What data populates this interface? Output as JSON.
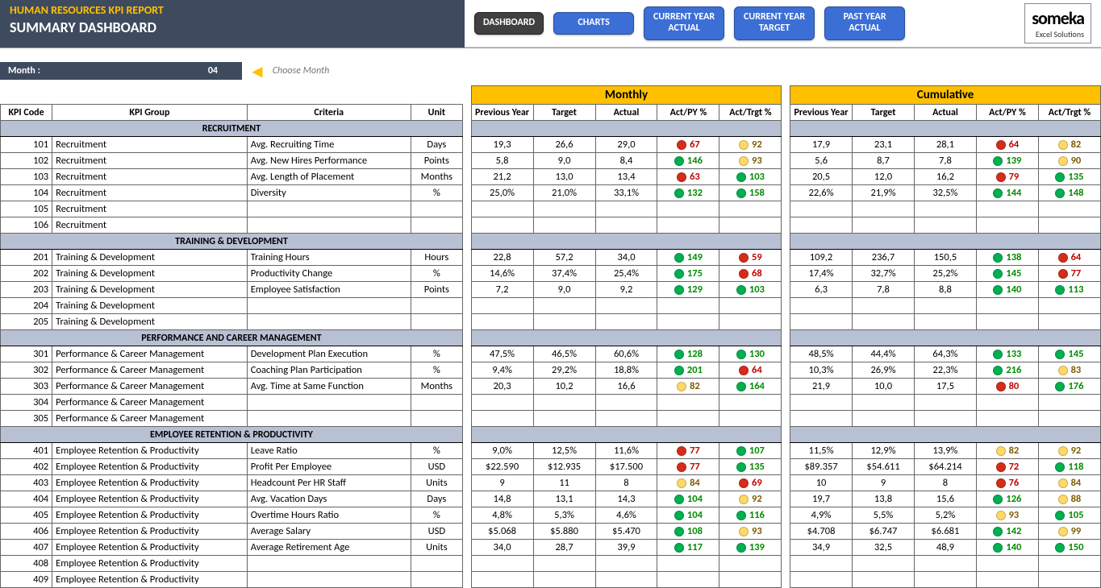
{
  "header": {
    "title1": "HUMAN RESOURCES KPI REPORT",
    "title2": "SUMMARY DASHBOARD",
    "nav": [
      "DASHBOARD",
      "CHARTS",
      "CURRENT YEAR\nACTUAL",
      "CURRENT YEAR\nTARGET",
      "PAST YEAR\nACTUAL"
    ],
    "logo1": "someka",
    "logo2": "Excel Solutions"
  },
  "month": {
    "label": "Month :",
    "value": "04",
    "choose": "Choose Month"
  },
  "section_labels": {
    "monthly": "Monthly",
    "cumulative": "Cumulative"
  },
  "col_labels": {
    "code": "KPI Code",
    "group": "KPI Group",
    "criteria": "Criteria",
    "unit": "Unit",
    "py": "Previous Year",
    "tgt": "Target",
    "act": "Actual",
    "actpy": "Act/PY %",
    "acttgt": "Act/Trgt %"
  },
  "groups": [
    {
      "name": "RECRUITMENT",
      "rows": [
        {
          "code": "101",
          "group": "Recruitment",
          "criteria": "Avg. Recruiting Time",
          "unit": "Days",
          "m": {
            "py": "19,3",
            "tgt": "26,6",
            "act": "29,0",
            "ap": {
              "v": "67",
              "c": "r"
            },
            "at": {
              "v": "92",
              "c": "y"
            }
          },
          "c": {
            "py": "17,9",
            "tgt": "23,1",
            "act": "28,1",
            "ap": {
              "v": "64",
              "c": "r"
            },
            "at": {
              "v": "82",
              "c": "y"
            }
          }
        },
        {
          "code": "102",
          "group": "Recruitment",
          "criteria": "Avg. New Hires Performance",
          "unit": "Points",
          "m": {
            "py": "5,8",
            "tgt": "9,0",
            "act": "8,4",
            "ap": {
              "v": "146",
              "c": "g"
            },
            "at": {
              "v": "93",
              "c": "y"
            }
          },
          "c": {
            "py": "5,6",
            "tgt": "8,7",
            "act": "7,8",
            "ap": {
              "v": "139",
              "c": "g"
            },
            "at": {
              "v": "90",
              "c": "y"
            }
          }
        },
        {
          "code": "103",
          "group": "Recruitment",
          "criteria": "Avg. Length of Placement",
          "unit": "Months",
          "m": {
            "py": "21,2",
            "tgt": "13,0",
            "act": "13,4",
            "ap": {
              "v": "63",
              "c": "r"
            },
            "at": {
              "v": "103",
              "c": "g"
            }
          },
          "c": {
            "py": "20,5",
            "tgt": "12,0",
            "act": "16,2",
            "ap": {
              "v": "79",
              "c": "r"
            },
            "at": {
              "v": "135",
              "c": "g"
            }
          }
        },
        {
          "code": "104",
          "group": "Recruitment",
          "criteria": "Diversity",
          "unit": "%",
          "m": {
            "py": "25,0%",
            "tgt": "21,0%",
            "act": "33,1%",
            "ap": {
              "v": "132",
              "c": "g"
            },
            "at": {
              "v": "158",
              "c": "g"
            }
          },
          "c": {
            "py": "22,6%",
            "tgt": "21,9%",
            "act": "32,5%",
            "ap": {
              "v": "144",
              "c": "g"
            },
            "at": {
              "v": "148",
              "c": "g"
            }
          }
        },
        {
          "code": "105",
          "group": "Recruitment"
        },
        {
          "code": "106",
          "group": "Recruitment"
        }
      ]
    },
    {
      "name": "TRAINING & DEVELOPMENT",
      "rows": [
        {
          "code": "201",
          "group": "Training & Development",
          "criteria": "Training Hours",
          "unit": "Hours",
          "m": {
            "py": "22,8",
            "tgt": "57,2",
            "act": "34,0",
            "ap": {
              "v": "149",
              "c": "g"
            },
            "at": {
              "v": "59",
              "c": "r"
            }
          },
          "c": {
            "py": "109,2",
            "tgt": "236,7",
            "act": "150,5",
            "ap": {
              "v": "138",
              "c": "g"
            },
            "at": {
              "v": "64",
              "c": "r"
            }
          }
        },
        {
          "code": "202",
          "group": "Training & Development",
          "criteria": "Productivity Change",
          "unit": "%",
          "m": {
            "py": "14,6%",
            "tgt": "37,4%",
            "act": "25,4%",
            "ap": {
              "v": "175",
              "c": "g"
            },
            "at": {
              "v": "68",
              "c": "r"
            }
          },
          "c": {
            "py": "17,4%",
            "tgt": "32,7%",
            "act": "25,2%",
            "ap": {
              "v": "145",
              "c": "g"
            },
            "at": {
              "v": "77",
              "c": "r"
            }
          }
        },
        {
          "code": "203",
          "group": "Training & Development",
          "criteria": "Employee Satisfaction",
          "unit": "Points",
          "m": {
            "py": "7,2",
            "tgt": "9,0",
            "act": "9,2",
            "ap": {
              "v": "129",
              "c": "g"
            },
            "at": {
              "v": "103",
              "c": "g"
            }
          },
          "c": {
            "py": "6,3",
            "tgt": "7,8",
            "act": "8,8",
            "ap": {
              "v": "140",
              "c": "g"
            },
            "at": {
              "v": "113",
              "c": "g"
            }
          }
        },
        {
          "code": "204",
          "group": "Training & Development"
        },
        {
          "code": "205",
          "group": "Training & Development"
        }
      ]
    },
    {
      "name": "PERFORMANCE AND CAREER MANAGEMENT",
      "rows": [
        {
          "code": "301",
          "group": "Performance & Career Management",
          "criteria": "Development Plan Execution",
          "unit": "%",
          "m": {
            "py": "47,5%",
            "tgt": "46,5%",
            "act": "60,6%",
            "ap": {
              "v": "128",
              "c": "g"
            },
            "at": {
              "v": "130",
              "c": "g"
            }
          },
          "c": {
            "py": "48,5%",
            "tgt": "44,4%",
            "act": "64,3%",
            "ap": {
              "v": "133",
              "c": "g"
            },
            "at": {
              "v": "145",
              "c": "g"
            }
          }
        },
        {
          "code": "302",
          "group": "Performance & Career Management",
          "criteria": "Coaching Plan Participation",
          "unit": "%",
          "m": {
            "py": "9,4%",
            "tgt": "29,2%",
            "act": "18,8%",
            "ap": {
              "v": "201",
              "c": "g"
            },
            "at": {
              "v": "64",
              "c": "r"
            }
          },
          "c": {
            "py": "10,3%",
            "tgt": "26,9%",
            "act": "22,3%",
            "ap": {
              "v": "216",
              "c": "g"
            },
            "at": {
              "v": "83",
              "c": "y"
            }
          }
        },
        {
          "code": "303",
          "group": "Performance & Career Management",
          "criteria": "Avg. Time at Same Function",
          "unit": "Months",
          "m": {
            "py": "20,3",
            "tgt": "10,2",
            "act": "16,6",
            "ap": {
              "v": "82",
              "c": "y"
            },
            "at": {
              "v": "164",
              "c": "g"
            }
          },
          "c": {
            "py": "21,9",
            "tgt": "10,0",
            "act": "17,5",
            "ap": {
              "v": "80",
              "c": "r"
            },
            "at": {
              "v": "176",
              "c": "g"
            }
          }
        },
        {
          "code": "304",
          "group": "Performance & Career Management"
        },
        {
          "code": "305",
          "group": "Performance & Career Management"
        }
      ]
    },
    {
      "name": "EMPLOYEE RETENTION & PRODUCTIVITY",
      "rows": [
        {
          "code": "401",
          "group": "Employee Retention & Productivity",
          "criteria": "Leave Ratio",
          "unit": "%",
          "m": {
            "py": "9,0%",
            "tgt": "12,5%",
            "act": "11,6%",
            "ap": {
              "v": "77",
              "c": "r"
            },
            "at": {
              "v": "107",
              "c": "g"
            }
          },
          "c": {
            "py": "11,5%",
            "tgt": "12,9%",
            "act": "13,9%",
            "ap": {
              "v": "82",
              "c": "y"
            },
            "at": {
              "v": "92",
              "c": "y"
            }
          }
        },
        {
          "code": "402",
          "group": "Employee Retention & Productivity",
          "criteria": "Profit Per Employee",
          "unit": "USD",
          "m": {
            "py": "$22.590",
            "tgt": "$12.935",
            "act": "$17.500",
            "ap": {
              "v": "77",
              "c": "r"
            },
            "at": {
              "v": "135",
              "c": "g"
            }
          },
          "c": {
            "py": "$89.357",
            "tgt": "$54.611",
            "act": "$64.214",
            "ap": {
              "v": "72",
              "c": "r"
            },
            "at": {
              "v": "118",
              "c": "g"
            }
          }
        },
        {
          "code": "403",
          "group": "Employee Retention & Productivity",
          "criteria": "Headcount Per HR Staff",
          "unit": "Units",
          "m": {
            "py": "9",
            "tgt": "11",
            "act": "8",
            "ap": {
              "v": "84",
              "c": "y"
            },
            "at": {
              "v": "69",
              "c": "r"
            }
          },
          "c": {
            "py": "10",
            "tgt": "9",
            "act": "8",
            "ap": {
              "v": "76",
              "c": "r"
            },
            "at": {
              "v": "84",
              "c": "y"
            }
          }
        },
        {
          "code": "404",
          "group": "Employee Retention & Productivity",
          "criteria": "Avg. Vacation Days",
          "unit": "Days",
          "m": {
            "py": "14,8",
            "tgt": "13,1",
            "act": "14,3",
            "ap": {
              "v": "104",
              "c": "g"
            },
            "at": {
              "v": "92",
              "c": "y"
            }
          },
          "c": {
            "py": "19,7",
            "tgt": "13,8",
            "act": "15,6",
            "ap": {
              "v": "126",
              "c": "g"
            },
            "at": {
              "v": "88",
              "c": "y"
            }
          }
        },
        {
          "code": "405",
          "group": "Employee Retention & Productivity",
          "criteria": "Overtime Hours Ratio",
          "unit": "%",
          "m": {
            "py": "4,8%",
            "tgt": "5,3%",
            "act": "4,6%",
            "ap": {
              "v": "104",
              "c": "g"
            },
            "at": {
              "v": "116",
              "c": "g"
            }
          },
          "c": {
            "py": "4,9%",
            "tgt": "5,5%",
            "act": "5,2%",
            "ap": {
              "v": "93",
              "c": "y"
            },
            "at": {
              "v": "105",
              "c": "g"
            }
          }
        },
        {
          "code": "406",
          "group": "Employee Retention & Productivity",
          "criteria": "Average Salary",
          "unit": "USD",
          "m": {
            "py": "$5.068",
            "tgt": "$5.880",
            "act": "$5.470",
            "ap": {
              "v": "108",
              "c": "g"
            },
            "at": {
              "v": "93",
              "c": "y"
            }
          },
          "c": {
            "py": "$4.708",
            "tgt": "$6.747",
            "act": "$6.681",
            "ap": {
              "v": "142",
              "c": "g"
            },
            "at": {
              "v": "99",
              "c": "y"
            }
          }
        },
        {
          "code": "407",
          "group": "Employee Retention & Productivity",
          "criteria": "Average Retirement Age",
          "unit": "Units",
          "m": {
            "py": "34,0",
            "tgt": "28,7",
            "act": "39,9",
            "ap": {
              "v": "117",
              "c": "g"
            },
            "at": {
              "v": "139",
              "c": "g"
            }
          },
          "c": {
            "py": "34,9",
            "tgt": "32,5",
            "act": "48,9",
            "ap": {
              "v": "140",
              "c": "g"
            },
            "at": {
              "v": "150",
              "c": "g"
            }
          }
        },
        {
          "code": "408",
          "group": "Employee Retention & Productivity"
        },
        {
          "code": "409",
          "group": "Employee Retention & Productivity"
        }
      ]
    }
  ]
}
